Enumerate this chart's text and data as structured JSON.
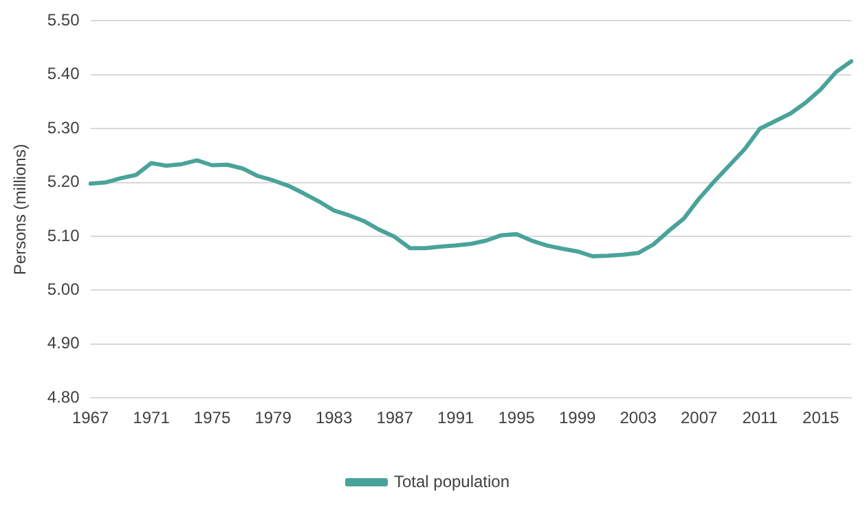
{
  "chart_data": {
    "type": "line",
    "ylabel": "Persons (millions)",
    "categories": [
      "1967",
      null,
      null,
      null,
      "1971",
      null,
      null,
      null,
      "1975",
      null,
      null,
      null,
      "1979",
      null,
      null,
      null,
      "1983",
      null,
      null,
      null,
      "1987",
      null,
      null,
      null,
      "1991",
      null,
      null,
      null,
      "1995",
      null,
      null,
      null,
      "1999",
      null,
      null,
      null,
      "2003",
      null,
      null,
      null,
      "2007",
      null,
      null,
      null,
      "2011",
      null,
      null,
      null,
      "2015",
      null,
      null
    ],
    "series": [
      {
        "name": "Total population",
        "color": "#4aa39a",
        "values": [
          5.198,
          5.2,
          5.208,
          5.214,
          5.236,
          5.231,
          5.234,
          5.241,
          5.232,
          5.233,
          5.226,
          5.212,
          5.204,
          5.194,
          5.18,
          5.165,
          5.148,
          5.139,
          5.128,
          5.112,
          5.099,
          5.078,
          5.078,
          5.081,
          5.083,
          5.086,
          5.092,
          5.102,
          5.104,
          5.092,
          5.083,
          5.077,
          5.072,
          5.063,
          5.064,
          5.066,
          5.069,
          5.085,
          5.11,
          5.133,
          5.17,
          5.202,
          5.232,
          5.262,
          5.3,
          5.314,
          5.328,
          5.348,
          5.373,
          5.405,
          5.425
        ]
      }
    ],
    "ylim": [
      4.8,
      5.5
    ],
    "yticks": [
      {
        "value": 4.8,
        "label": "4.80"
      },
      {
        "value": 4.9,
        "label": "4.90"
      },
      {
        "value": 5.0,
        "label": "5.00"
      },
      {
        "value": 5.1,
        "label": "5.10"
      },
      {
        "value": 5.2,
        "label": "5.20"
      },
      {
        "value": 5.3,
        "label": "5.30"
      },
      {
        "value": 5.4,
        "label": "5.40"
      },
      {
        "value": 5.5,
        "label": "5.50"
      }
    ],
    "grid": "y",
    "legend": "bottom",
    "marker": "none",
    "line_style": "solid"
  }
}
